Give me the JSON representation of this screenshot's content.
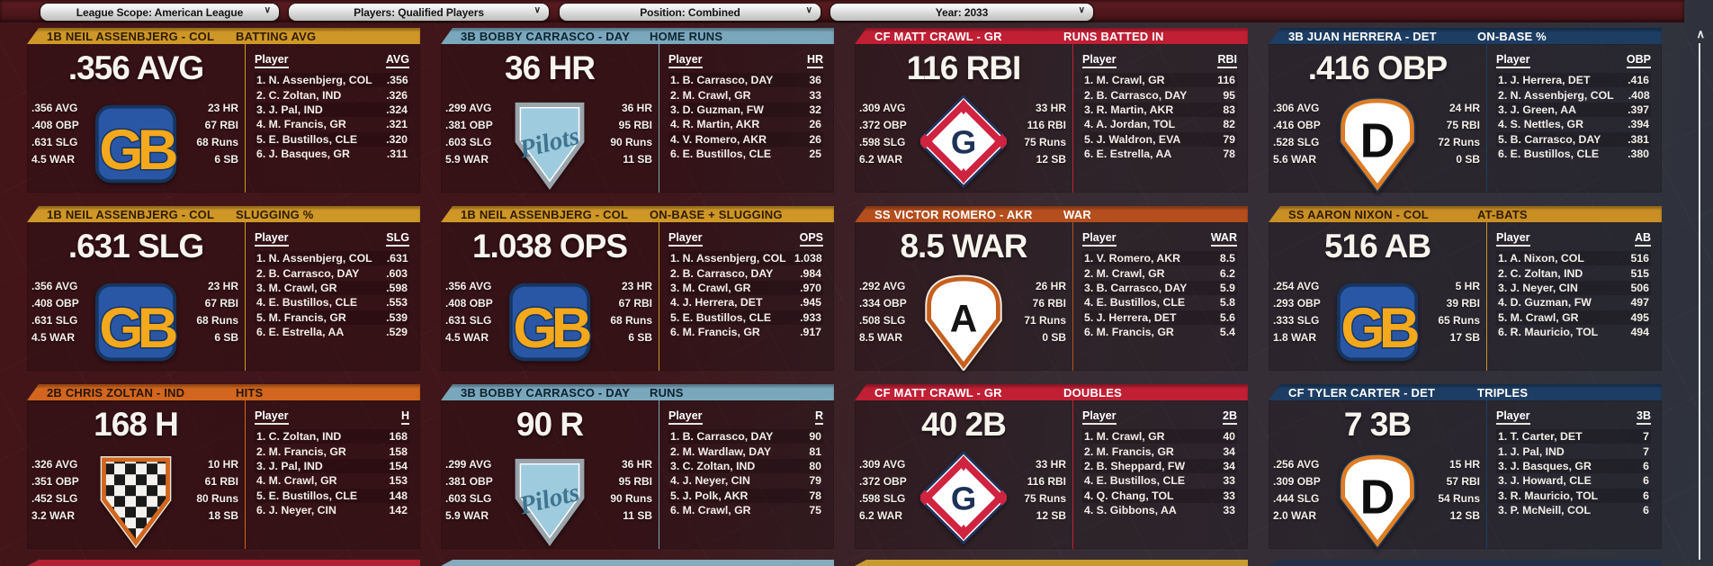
{
  "chevron_icon": "∨",
  "scrollbar": {
    "up_arrow_icon": "∧"
  },
  "filters": [
    {
      "label": "League Scope: American League"
    },
    {
      "label": "Players: Qualified Players"
    },
    {
      "label": "Position: Combined"
    },
    {
      "label": "Year: 2033"
    }
  ],
  "next_row_slivers": [
    "#b22032",
    "#84aabb",
    "#c89b31",
    "#203048"
  ],
  "panels": [
    {
      "header": {
        "title": "1B NEIL ASSENBJERG - COL",
        "stat": "BATTING AVG",
        "bg": "#cf9727",
        "fg": "#2e1c04"
      },
      "big_stat": ".356 AVG",
      "left_stats": [
        ".356 AVG",
        ".408 OBP",
        ".631 SLG",
        "4.5 WAR"
      ],
      "right_stats": [
        "23 HR",
        "67 RBI",
        "68 Runs",
        "6 SB"
      ],
      "logo": {
        "type": "gb",
        "icon": "gb-logo-icon"
      },
      "list": {
        "name_header": "Player",
        "stat_header": "AVG",
        "rows": [
          {
            "name": "1. N. Assenbjerg, COL",
            "value": ".356"
          },
          {
            "name": "2. C. Zoltan, IND",
            "value": ".326"
          },
          {
            "name": "3. J. Pal, IND",
            "value": ".324"
          },
          {
            "name": "4. M. Francis, GR",
            "value": ".321"
          },
          {
            "name": "5. E. Bustillos, CLE",
            "value": ".320"
          },
          {
            "name": "6. J. Basques, GR",
            "value": ".311"
          }
        ]
      }
    },
    {
      "header": {
        "title": "3B BOBBY CARRASCO - DAY",
        "stat": "HOME RUNS",
        "bg": "#7aa7bc",
        "fg": "#0e2430"
      },
      "big_stat": "36 HR",
      "left_stats": [
        ".299 AVG",
        ".381 OBP",
        ".603 SLG",
        "5.9 WAR"
      ],
      "right_stats": [
        "36 HR",
        "95 RBI",
        "90 Runs",
        "11 SB"
      ],
      "logo": {
        "type": "pilots",
        "icon": "pilots-logo-icon"
      },
      "list": {
        "name_header": "Player",
        "stat_header": "HR",
        "rows": [
          {
            "name": "1. B. Carrasco, DAY",
            "value": "36"
          },
          {
            "name": "2. M. Crawl, GR",
            "value": "33"
          },
          {
            "name": "3. D. Guzman, FW",
            "value": "32"
          },
          {
            "name": "4. R. Martin, AKR",
            "value": "26"
          },
          {
            "name": "4. V. Romero, AKR",
            "value": "26"
          },
          {
            "name": "6. E. Bustillos, CLE",
            "value": "25"
          }
        ]
      }
    },
    {
      "header": {
        "title": "CF MATT CRAWL - GR",
        "stat": "RUNS BATTED IN",
        "bg": "#c01f34",
        "fg": "#ffffff"
      },
      "big_stat": "116 RBI",
      "left_stats": [
        ".309 AVG",
        ".372 OBP",
        ".598 SLG",
        "6.2 WAR"
      ],
      "right_stats": [
        "33 HR",
        "116 RBI",
        "75 Runs",
        "12 SB"
      ],
      "logo": {
        "type": "gdiamond",
        "icon": "g-diamond-logo-icon"
      },
      "list": {
        "name_header": "Player",
        "stat_header": "RBI",
        "rows": [
          {
            "name": "1. M. Crawl, GR",
            "value": "116"
          },
          {
            "name": "2. B. Carrasco, DAY",
            "value": "95"
          },
          {
            "name": "3. R. Martin, AKR",
            "value": "83"
          },
          {
            "name": "4. A. Jordan, TOL",
            "value": "82"
          },
          {
            "name": "5. J. Waldron, EVA",
            "value": "79"
          },
          {
            "name": "6. E. Estrella, AA",
            "value": "78"
          }
        ]
      }
    },
    {
      "header": {
        "title": "3B JUAN HERRERA - DET",
        "stat": "ON-BASE %",
        "bg": "#1d3d63",
        "fg": "#ffffff"
      },
      "big_stat": ".416 OBP",
      "left_stats": [
        ".306 AVG",
        ".416 OBP",
        ".528 SLG",
        "5.6 WAR"
      ],
      "right_stats": [
        "24 HR",
        "75 RBI",
        "72 Runs",
        "0 SB"
      ],
      "logo": {
        "type": "dplate",
        "icon": "d-plate-logo-icon"
      },
      "list": {
        "name_header": "Player",
        "stat_header": "OBP",
        "rows": [
          {
            "name": "1. J. Herrera, DET",
            "value": ".416"
          },
          {
            "name": "2. N. Assenbjerg, COL",
            "value": ".408"
          },
          {
            "name": "3. J. Green, AA",
            "value": ".397"
          },
          {
            "name": "4. S. Nettles, GR",
            "value": ".394"
          },
          {
            "name": "5. B. Carrasco, DAY",
            "value": ".381"
          },
          {
            "name": "6. E. Bustillos, CLE",
            "value": ".380"
          }
        ]
      }
    },
    {
      "header": {
        "title": "1B NEIL ASSENBJERG - COL",
        "stat": "SLUGGING %",
        "bg": "#cf9727",
        "fg": "#2e1c04"
      },
      "big_stat": ".631 SLG",
      "left_stats": [
        ".356 AVG",
        ".408 OBP",
        ".631 SLG",
        "4.5 WAR"
      ],
      "right_stats": [
        "23 HR",
        "67 RBI",
        "68 Runs",
        "6 SB"
      ],
      "logo": {
        "type": "gb",
        "icon": "gb-logo-icon"
      },
      "list": {
        "name_header": "Player",
        "stat_header": "SLG",
        "rows": [
          {
            "name": "1. N. Assenbjerg, COL",
            "value": ".631"
          },
          {
            "name": "2. B. Carrasco, DAY",
            "value": ".603"
          },
          {
            "name": "3. M. Crawl, GR",
            "value": ".598"
          },
          {
            "name": "4. E. Bustillos, CLE",
            "value": ".553"
          },
          {
            "name": "5. M. Francis, GR",
            "value": ".539"
          },
          {
            "name": "6. E. Estrella, AA",
            "value": ".529"
          }
        ]
      }
    },
    {
      "header": {
        "title": "1B NEIL ASSENBJERG - COL",
        "stat": "ON-BASE + SLUGGING",
        "bg": "#cf9727",
        "fg": "#2e1c04"
      },
      "big_stat": "1.038 OPS",
      "left_stats": [
        ".356 AVG",
        ".408 OBP",
        ".631 SLG",
        "4.5 WAR"
      ],
      "right_stats": [
        "23 HR",
        "67 RBI",
        "68 Runs",
        "6 SB"
      ],
      "logo": {
        "type": "gb",
        "icon": "gb-logo-icon"
      },
      "list": {
        "name_header": "Player",
        "stat_header": "OPS",
        "rows": [
          {
            "name": "1. N. Assenbjerg, COL",
            "value": "1.038"
          },
          {
            "name": "2. B. Carrasco, DAY",
            "value": ".984"
          },
          {
            "name": "3. M. Crawl, GR",
            "value": ".970"
          },
          {
            "name": "4. J. Herrera, DET",
            "value": ".945"
          },
          {
            "name": "5. E. Bustillos, CLE",
            "value": ".933"
          },
          {
            "name": "6. M. Francis, GR",
            "value": ".917"
          }
        ]
      }
    },
    {
      "header": {
        "title": "SS VICTOR ROMERO - AKR",
        "stat": "WAR",
        "bg": "#b44e1d",
        "fg": "#ffffff"
      },
      "big_stat": "8.5 WAR",
      "left_stats": [
        ".292 AVG",
        ".334 OBP",
        ".508 SLG",
        "8.5 WAR"
      ],
      "right_stats": [
        "26 HR",
        "76 RBI",
        "71 Runs",
        "0 SB"
      ],
      "logo": {
        "type": "aplate",
        "icon": "a-plate-logo-icon"
      },
      "list": {
        "name_header": "Player",
        "stat_header": "WAR",
        "rows": [
          {
            "name": "1. V. Romero, AKR",
            "value": "8.5"
          },
          {
            "name": "2. M. Crawl, GR",
            "value": "6.2"
          },
          {
            "name": "3. B. Carrasco, DAY",
            "value": "5.9"
          },
          {
            "name": "4. E. Bustillos, CLE",
            "value": "5.8"
          },
          {
            "name": "5. J. Herrera, DET",
            "value": "5.6"
          },
          {
            "name": "6. M. Francis, GR",
            "value": "5.4"
          }
        ]
      }
    },
    {
      "header": {
        "title": "SS AARON NIXON - COL",
        "stat": "AT-BATS",
        "bg": "#c98f25",
        "fg": "#2e1c04"
      },
      "big_stat": "516 AB",
      "left_stats": [
        ".254 AVG",
        ".293 OBP",
        ".333 SLG",
        "1.8 WAR"
      ],
      "right_stats": [
        "5 HR",
        "39 RBI",
        "65 Runs",
        "17 SB"
      ],
      "logo": {
        "type": "gb",
        "icon": "gb-logo-icon"
      },
      "list": {
        "name_header": "Player",
        "stat_header": "AB",
        "rows": [
          {
            "name": "1. A. Nixon, COL",
            "value": "516"
          },
          {
            "name": "2. C. Zoltan, IND",
            "value": "515"
          },
          {
            "name": "3. J. Neyer, CIN",
            "value": "506"
          },
          {
            "name": "4. D. Guzman, FW",
            "value": "497"
          },
          {
            "name": "5. M. Crawl, GR",
            "value": "495"
          },
          {
            "name": "6. R. Mauricio, TOL",
            "value": "494"
          }
        ]
      }
    },
    {
      "header": {
        "title": "2B CHRIS ZOLTAN - IND",
        "stat": "HITS",
        "bg": "#d2661e",
        "fg": "#27160a"
      },
      "big_stat": "168 H",
      "left_stats": [
        ".326 AVG",
        ".351 OBP",
        ".452 SLG",
        "3.2 WAR"
      ],
      "right_stats": [
        "10 HR",
        "61 RBI",
        "80 Runs",
        "18 SB"
      ],
      "logo": {
        "type": "checkered",
        "icon": "checkered-plate-logo-icon"
      },
      "list": {
        "name_header": "Player",
        "stat_header": "H",
        "rows": [
          {
            "name": "1. C. Zoltan, IND",
            "value": "168"
          },
          {
            "name": "2. M. Francis, GR",
            "value": "158"
          },
          {
            "name": "3. J. Pal, IND",
            "value": "154"
          },
          {
            "name": "4. M. Crawl, GR",
            "value": "153"
          },
          {
            "name": "5. E. Bustillos, CLE",
            "value": "148"
          },
          {
            "name": "6. J. Neyer, CIN",
            "value": "142"
          }
        ]
      }
    },
    {
      "header": {
        "title": "3B BOBBY CARRASCO - DAY",
        "stat": "RUNS",
        "bg": "#7aa7bc",
        "fg": "#0e2430"
      },
      "big_stat": "90 R",
      "left_stats": [
        ".299 AVG",
        ".381 OBP",
        ".603 SLG",
        "5.9 WAR"
      ],
      "right_stats": [
        "36 HR",
        "95 RBI",
        "90 Runs",
        "11 SB"
      ],
      "logo": {
        "type": "pilots",
        "icon": "pilots-logo-icon"
      },
      "list": {
        "name_header": "Player",
        "stat_header": "R",
        "rows": [
          {
            "name": "1. B. Carrasco, DAY",
            "value": "90"
          },
          {
            "name": "2. M. Wardlaw, DAY",
            "value": "81"
          },
          {
            "name": "3. C. Zoltan, IND",
            "value": "80"
          },
          {
            "name": "4. J. Neyer, CIN",
            "value": "79"
          },
          {
            "name": "5. J. Polk, AKR",
            "value": "78"
          },
          {
            "name": "6. M. Crawl, GR",
            "value": "75"
          }
        ]
      }
    },
    {
      "header": {
        "title": "CF MATT CRAWL - GR",
        "stat": "DOUBLES",
        "bg": "#c01f34",
        "fg": "#ffffff"
      },
      "big_stat": "40 2B",
      "left_stats": [
        ".309 AVG",
        ".372 OBP",
        ".598 SLG",
        "6.2 WAR"
      ],
      "right_stats": [
        "33 HR",
        "116 RBI",
        "75 Runs",
        "12 SB"
      ],
      "logo": {
        "type": "gdiamond",
        "icon": "g-diamond-logo-icon"
      },
      "list": {
        "name_header": "Player",
        "stat_header": "2B",
        "rows": [
          {
            "name": "1. M. Crawl, GR",
            "value": "40"
          },
          {
            "name": "2. M. Francis, GR",
            "value": "34"
          },
          {
            "name": "2. B. Sheppard, FW",
            "value": "34"
          },
          {
            "name": "4. E. Bustillos, CLE",
            "value": "33"
          },
          {
            "name": "4. Q. Chang, TOL",
            "value": "33"
          },
          {
            "name": "4. S. Gibbons, AA",
            "value": "33"
          }
        ]
      }
    },
    {
      "header": {
        "title": "CF TYLER CARTER - DET",
        "stat": "TRIPLES",
        "bg": "#1d3d63",
        "fg": "#ffffff"
      },
      "big_stat": "7 3B",
      "left_stats": [
        ".256 AVG",
        ".309 OBP",
        ".444 SLG",
        "2.0 WAR"
      ],
      "right_stats": [
        "15 HR",
        "57 RBI",
        "54 Runs",
        "12 SB"
      ],
      "logo": {
        "type": "dplate",
        "icon": "d-plate-logo-icon"
      },
      "list": {
        "name_header": "Player",
        "stat_header": "3B",
        "rows": [
          {
            "name": "1. T. Carter, DET",
            "value": "7"
          },
          {
            "name": "1. J. Pal, IND",
            "value": "7"
          },
          {
            "name": "3. J. Basques, GR",
            "value": "6"
          },
          {
            "name": "3. J. Howard, CLE",
            "value": "6"
          },
          {
            "name": "3. R. Mauricio, TOL",
            "value": "6"
          },
          {
            "name": "3. P. McNeill, COL",
            "value": "6"
          }
        ]
      }
    }
  ]
}
